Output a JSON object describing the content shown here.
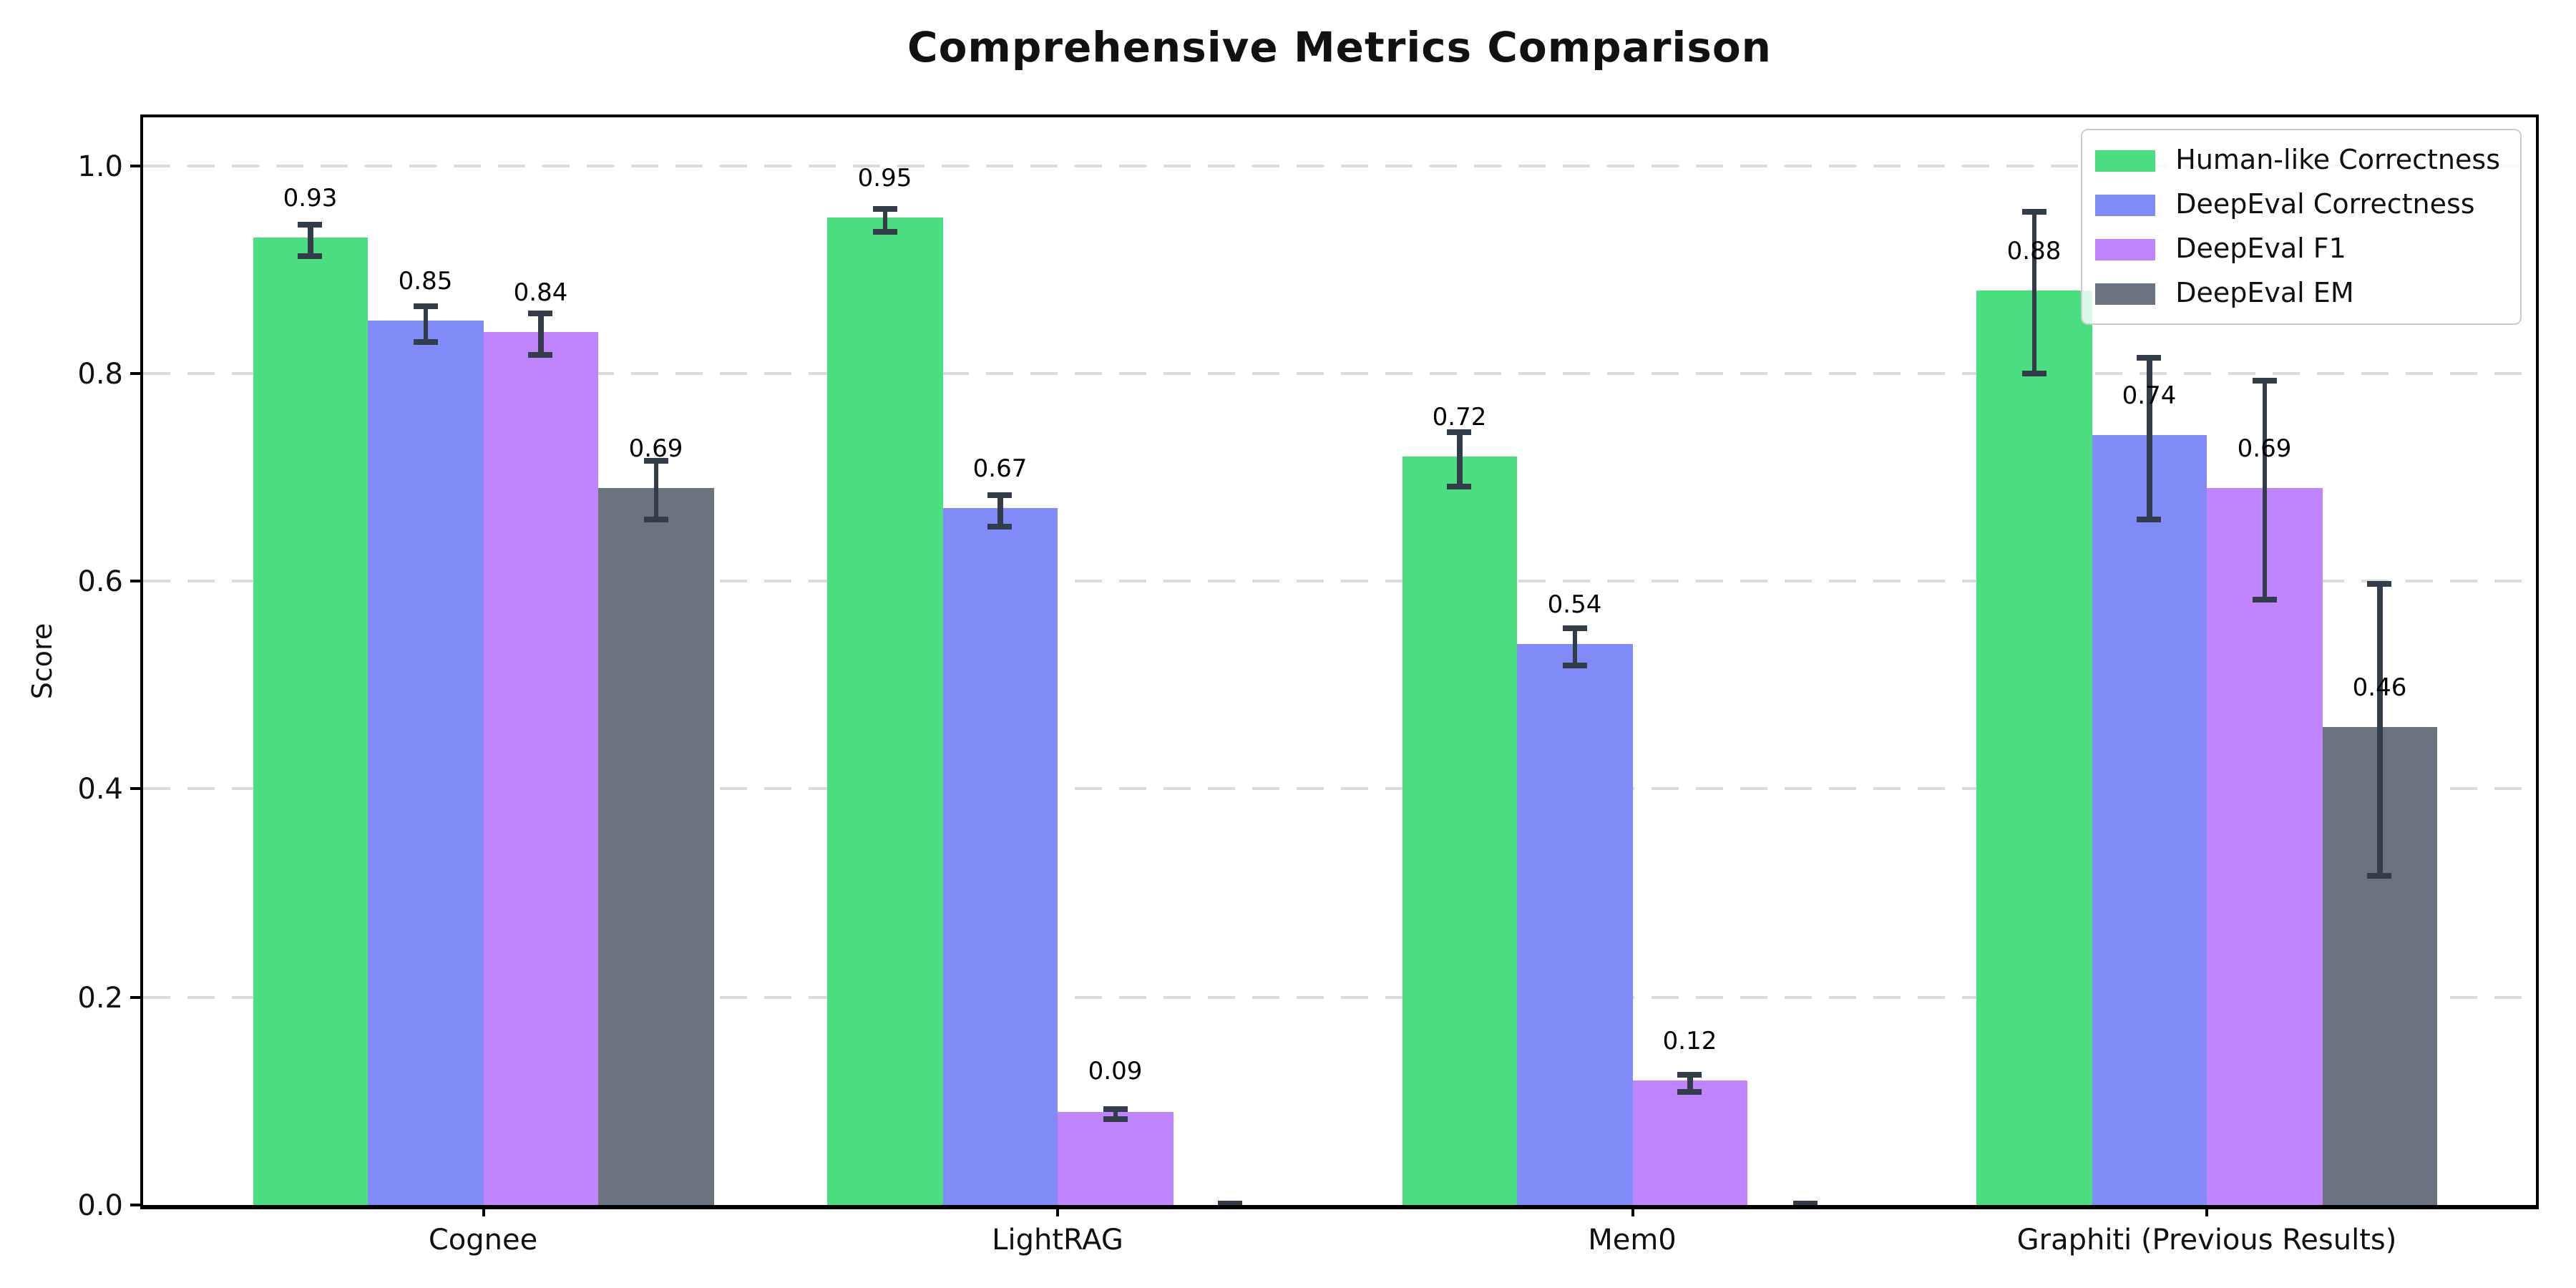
{
  "chart_data": {
    "type": "bar",
    "title": "Comprehensive Metrics Comparison",
    "ylabel": "Score",
    "xlabel": "",
    "categories": [
      "Cognee",
      "LightRAG",
      "Mem0",
      "Graphiti (Previous Results)"
    ],
    "series": [
      {
        "name": "Human-like Correctness",
        "color": "#4ade80",
        "values": [
          0.93,
          0.95,
          0.72,
          0.88
        ],
        "errors": [
          0.015,
          0.011,
          0.026,
          0.078
        ],
        "labels": [
          "0.93",
          "0.95",
          "0.72",
          "0.88"
        ]
      },
      {
        "name": "DeepEval Correctness",
        "color": "#818cf8",
        "values": [
          0.85,
          0.67,
          0.54,
          0.74
        ],
        "errors": [
          0.017,
          0.015,
          0.018,
          0.078
        ],
        "labels": [
          "0.85",
          "0.67",
          "0.54",
          "0.74"
        ]
      },
      {
        "name": "DeepEval F1",
        "color": "#c084fc",
        "values": [
          0.84,
          0.09,
          0.12,
          0.69
        ],
        "errors": [
          0.02,
          0.005,
          0.008,
          0.105
        ],
        "labels": [
          "0.84",
          "0.09",
          "0.12",
          "0.69"
        ]
      },
      {
        "name": "DeepEval EM",
        "color": "#6b7280",
        "values": [
          0.69,
          0.0,
          0.0,
          0.46
        ],
        "errors": [
          0.028,
          0.004,
          0.004,
          0.14
        ],
        "labels": [
          "0.69",
          "",
          "",
          "0.46"
        ]
      }
    ],
    "yticks": [
      "0.0",
      "0.2",
      "0.4",
      "0.6",
      "0.8",
      "1.0"
    ],
    "ytick_values": [
      0.0,
      0.2,
      0.4,
      0.6,
      0.8,
      1.0
    ],
    "ylim": [
      0,
      1.046
    ],
    "grid": "horizontal dashed",
    "grid_color": "#d9d9d9",
    "error_color": "#333d49",
    "legend_position": "upper right"
  }
}
